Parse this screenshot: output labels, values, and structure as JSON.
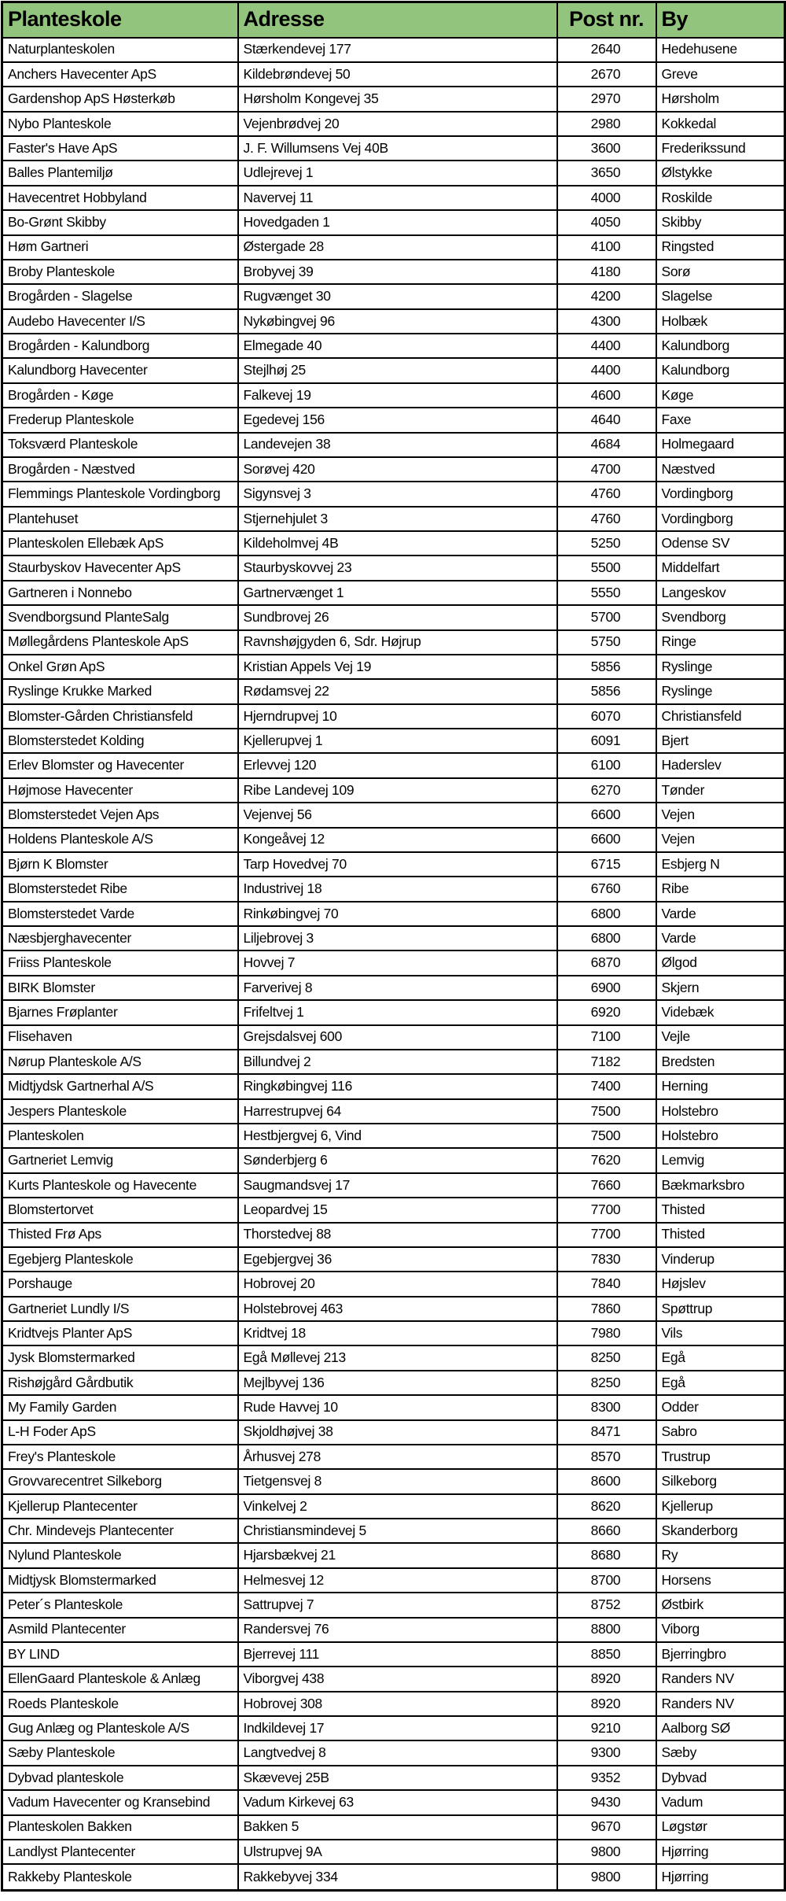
{
  "colors": {
    "header_bg": "#93c47d",
    "border": "#000000",
    "row_bg": "#ffffff",
    "text": "#000000"
  },
  "table": {
    "headers": [
      "Planteskole",
      "Adresse",
      "Post nr.",
      "By"
    ],
    "rows": [
      [
        "Naturplanteskolen",
        "Stærkendevej 177",
        "2640",
        "Hedehusene"
      ],
      [
        "Anchers Havecenter ApS",
        "Kildebrøndevej 50",
        "2670",
        "Greve"
      ],
      [
        "Gardenshop ApS Høsterkøb",
        "Hørsholm Kongevej 35",
        "2970",
        "Hørsholm"
      ],
      [
        "Nybo Planteskole",
        "Vejenbrødvej 20",
        "2980",
        "Kokkedal"
      ],
      [
        "Faster's Have ApS",
        "J. F. Willumsens Vej 40B",
        "3600",
        "Frederikssund"
      ],
      [
        "Balles Plantemiljø",
        "Udlejrevej 1",
        "3650",
        "Ølstykke"
      ],
      [
        "Havecentret Hobbyland",
        "Navervej 11",
        "4000",
        "Roskilde"
      ],
      [
        "Bo-Grønt Skibby",
        "Hovedgaden 1",
        "4050",
        "Skibby"
      ],
      [
        "Høm Gartneri",
        "Østergade 28",
        "4100",
        "Ringsted"
      ],
      [
        "Broby Planteskole",
        "Brobyvej 39",
        "4180",
        "Sorø"
      ],
      [
        "Brogården - Slagelse",
        "Rugvænget 30",
        "4200",
        "Slagelse"
      ],
      [
        "Audebo Havecenter I/S",
        "Nykøbingvej 96",
        "4300",
        "Holbæk"
      ],
      [
        "Brogården - Kalundborg",
        "Elmegade 40",
        "4400",
        "Kalundborg"
      ],
      [
        "Kalundborg Havecenter",
        "Stejlhøj 25",
        "4400",
        "Kalundborg"
      ],
      [
        "Brogården - Køge",
        "Falkevej 19",
        "4600",
        "Køge"
      ],
      [
        "Frederup Planteskole",
        "Egedevej 156",
        "4640",
        "Faxe"
      ],
      [
        "Toksværd Planteskole",
        "Landevejen 38",
        "4684",
        "Holmegaard"
      ],
      [
        "Brogården - Næstved",
        "Sorøvej 420",
        "4700",
        "Næstved"
      ],
      [
        "Flemmings Planteskole Vordingborg",
        "Sigynsvej 3",
        "4760",
        "Vordingborg"
      ],
      [
        "Plantehuset",
        "Stjernehjulet 3",
        "4760",
        "Vordingborg"
      ],
      [
        "Planteskolen Ellebæk ApS",
        "Kildeholmvej 4B",
        "5250",
        "Odense SV"
      ],
      [
        "Staurbyskov Havecenter ApS",
        "Staurbyskovvej 23",
        "5500",
        "Middelfart"
      ],
      [
        "Gartneren i Nonnebo",
        "Gartnervænget 1",
        "5550",
        "Langeskov"
      ],
      [
        "Svendborgsund PlanteSalg",
        "Sundbrovej 26",
        "5700",
        "Svendborg"
      ],
      [
        "Møllegårdens Planteskole ApS",
        "Ravnshøjgyden 6, Sdr. Højrup",
        "5750",
        "Ringe"
      ],
      [
        "Onkel Grøn ApS",
        "Kristian Appels Vej 19",
        "5856",
        "Ryslinge"
      ],
      [
        "Ryslinge Krukke Marked",
        "Rødamsvej 22",
        "5856",
        "Ryslinge"
      ],
      [
        "Blomster-Gården Christiansfeld",
        "Hjerndrupvej 10",
        "6070",
        "Christiansfeld"
      ],
      [
        "Blomsterstedet Kolding",
        "Kjellerupvej 1",
        "6091",
        "Bjert"
      ],
      [
        "Erlev Blomster og Havecenter",
        "Erlevvej 120",
        "6100",
        "Haderslev"
      ],
      [
        "Højmose Havecenter",
        "Ribe Landevej 109",
        "6270",
        "Tønder"
      ],
      [
        "Blomsterstedet Vejen Aps",
        "Vejenvej 56",
        "6600",
        "Vejen"
      ],
      [
        "Holdens Planteskole A/S",
        "Kongeåvej 12",
        "6600",
        "Vejen"
      ],
      [
        "Bjørn K Blomster",
        "Tarp Hovedvej 70",
        "6715",
        "Esbjerg N"
      ],
      [
        "Blomsterstedet Ribe",
        "Industrivej 18",
        "6760",
        "Ribe"
      ],
      [
        "Blomsterstedet Varde",
        "Rinkøbingvej 70",
        "6800",
        "Varde"
      ],
      [
        "Næsbjerghavecenter",
        "Liljebrovej 3",
        "6800",
        "Varde"
      ],
      [
        "Friiss Planteskole",
        "Hovvej 7",
        "6870",
        "Ølgod"
      ],
      [
        "BIRK Blomster",
        "Farverivej 8",
        "6900",
        "Skjern"
      ],
      [
        "Bjarnes Frøplanter",
        "Frifeltvej 1",
        "6920",
        "Videbæk"
      ],
      [
        "Flisehaven",
        "Grejsdalsvej 600",
        "7100",
        "Vejle"
      ],
      [
        "Nørup Planteskole A/S",
        "Billundvej 2",
        "7182",
        "Bredsten"
      ],
      [
        "Midtjydsk Gartnerhal A/S",
        "Ringkøbingvej 116",
        "7400",
        "Herning"
      ],
      [
        "Jespers Planteskole",
        "Harrestrupvej 64",
        "7500",
        "Holstebro"
      ],
      [
        "Planteskolen",
        "Hestbjergvej 6, Vind",
        "7500",
        "Holstebro"
      ],
      [
        "Gartneriet Lemvig",
        "Sønderbjerg 6",
        "7620",
        "Lemvig"
      ],
      [
        "Kurts Planteskole og Havecente",
        "Saugmandsvej 17",
        "7660",
        "Bækmarksbro"
      ],
      [
        "Blomstertorvet",
        "Leopardvej 15",
        "7700",
        "Thisted"
      ],
      [
        "Thisted Frø Aps",
        "Thorstedvej 88",
        "7700",
        "Thisted"
      ],
      [
        "Egebjerg Planteskole",
        "Egebjergvej 36",
        "7830",
        "Vinderup"
      ],
      [
        "Porshauge",
        "Hobrovej 20",
        "7840",
        "Højslev"
      ],
      [
        "Gartneriet Lundly I/S",
        "Holstebrovej 463",
        "7860",
        "Spøttrup"
      ],
      [
        "Kridtvejs Planter ApS",
        "Kridtvej 18",
        "7980",
        "Vils"
      ],
      [
        "Jysk Blomstermarked",
        "Egå Møllevej 213",
        "8250",
        "Egå"
      ],
      [
        "Rishøjgård Gårdbutik",
        "Mejlbyvej 136",
        "8250",
        "Egå"
      ],
      [
        "My Family Garden",
        "Rude Havvej 10",
        "8300",
        "Odder"
      ],
      [
        "L-H Foder ApS",
        "Skjoldhøjvej 38",
        "8471",
        "Sabro"
      ],
      [
        "Frey's Planteskole",
        "Århusvej 278",
        "8570",
        "Trustrup"
      ],
      [
        "Grovvarecentret Silkeborg",
        "Tietgensvej 8",
        "8600",
        "Silkeborg"
      ],
      [
        "Kjellerup Plantecenter",
        "Vinkelvej 2",
        "8620",
        "Kjellerup"
      ],
      [
        "Chr. Mindevejs Plantecenter",
        "Christiansmindevej 5",
        "8660",
        "Skanderborg"
      ],
      [
        "Nylund Planteskole",
        "Hjarsbækvej 21",
        "8680",
        "Ry"
      ],
      [
        "Midtjysk Blomstermarked",
        "Helmesvej 12",
        "8700",
        "Horsens"
      ],
      [
        "Peter´s Planteskole",
        "Sattrupvej 7",
        "8752",
        "Østbirk"
      ],
      [
        "Asmild Plantecenter",
        "Randersvej 76",
        "8800",
        "Viborg"
      ],
      [
        "BY LIND",
        "Bjerrevej 111",
        "8850",
        "Bjerringbro"
      ],
      [
        "EllenGaard Planteskole & Anlæg",
        "Viborgvej 438",
        "8920",
        "Randers NV"
      ],
      [
        "Roeds Planteskole",
        "Hobrovej 308",
        "8920",
        "Randers NV"
      ],
      [
        "Gug Anlæg og Planteskole A/S",
        "Indkildevej 17",
        "9210",
        "Aalborg SØ"
      ],
      [
        "Sæby Planteskole",
        "Langtvedvej 8",
        "9300",
        "Sæby"
      ],
      [
        "Dybvad planteskole",
        "Skævevej 25B",
        "9352",
        "Dybvad"
      ],
      [
        "Vadum Havecenter og Kransebind",
        "Vadum Kirkevej 63",
        "9430",
        "Vadum"
      ],
      [
        "Planteskolen Bakken",
        "Bakken 5",
        "9670",
        "Løgstør"
      ],
      [
        "Landlyst Plantecenter",
        "Ulstrupvej 9A",
        "9800",
        "Hjørring"
      ],
      [
        "Rakkeby Planteskole",
        "Rakkebyvej 334",
        "9800",
        "Hjørring"
      ]
    ]
  }
}
